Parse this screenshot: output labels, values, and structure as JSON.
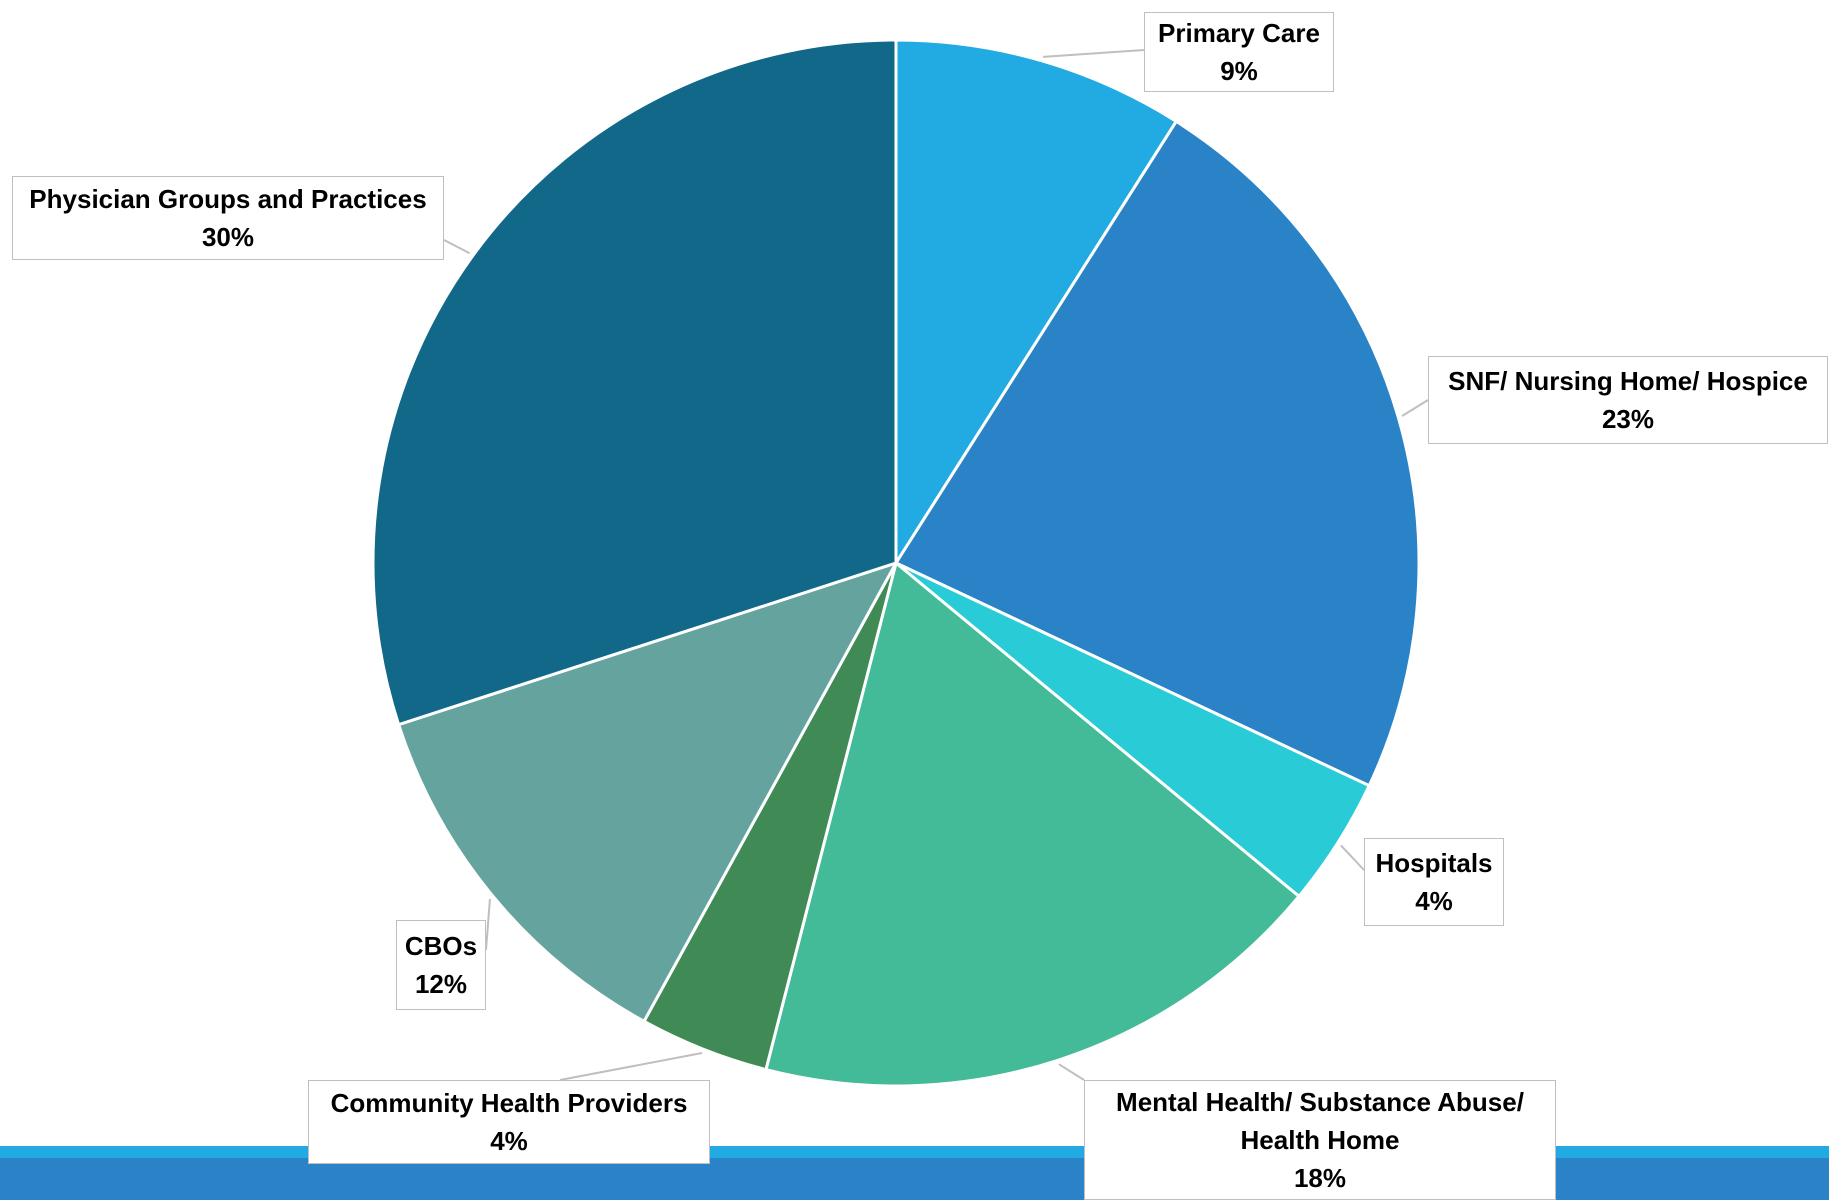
{
  "chart_data": {
    "type": "pie",
    "title": "",
    "start_angle": "12 o'clock, clockwise",
    "slices": [
      {
        "label": "Primary Care",
        "value": 9,
        "value_label": "9%",
        "color": "#21ABE2"
      },
      {
        "label": "SNF/ Nursing Home/ Hospice",
        "value": 23,
        "value_label": "23%",
        "color": "#2A83C6"
      },
      {
        "label": "Hospitals",
        "value": 4,
        "value_label": "4%",
        "color": "#29CBD6"
      },
      {
        "label": "Mental Health/ Substance Abuse/ Health Home",
        "label_lines": [
          "Mental Health/ Substance Abuse/",
          "Health Home"
        ],
        "value": 18,
        "value_label": "18%",
        "color": "#43BA98"
      },
      {
        "label": "Community Health Providers",
        "value": 4,
        "value_label": "4%",
        "color": "#3F8A55"
      },
      {
        "label": "CBOs",
        "value": 12,
        "value_label": "12%",
        "color": "#65A39F"
      },
      {
        "label": "Physician Groups and Practices",
        "value": 30,
        "value_label": "30%",
        "color": "#126888"
      }
    ]
  },
  "colors": {
    "slice_border": "#ffffff",
    "leader_line": "#bfbfbf",
    "footer_band_light": "#21ABE2",
    "footer_band_dark": "#2A83C6"
  }
}
